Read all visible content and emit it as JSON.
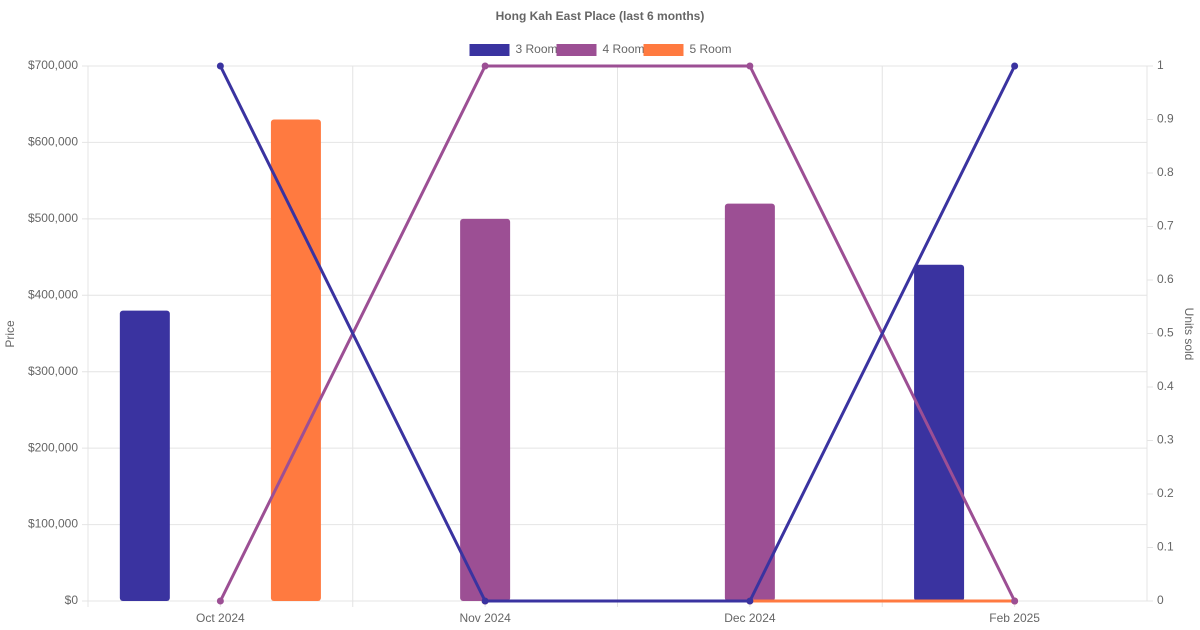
{
  "chart_data": {
    "type": "bar",
    "title": "Hong Kah East Place (last 6 months)",
    "categories": [
      "Oct 2024",
      "Nov 2024",
      "Dec 2024",
      "Feb 2025"
    ],
    "ylabel": "Price",
    "y2label": "Units sold",
    "ylim": [
      0,
      700000
    ],
    "yticks": [
      {
        "value": 0,
        "label": "$0"
      },
      {
        "value": 100000,
        "label": "$100,000"
      },
      {
        "value": 200000,
        "label": "$200,000"
      },
      {
        "value": 300000,
        "label": "$300,000"
      },
      {
        "value": 400000,
        "label": "$400,000"
      },
      {
        "value": 500000,
        "label": "$500,000"
      },
      {
        "value": 600000,
        "label": "$600,000"
      },
      {
        "value": 700000,
        "label": "$700,000"
      }
    ],
    "y2lim": [
      0,
      1
    ],
    "y2ticks": [
      0,
      0.1,
      0.2,
      0.3,
      0.4,
      0.5,
      0.6,
      0.7,
      0.8,
      0.9,
      1
    ],
    "grid": true,
    "legend": "top",
    "series": [
      {
        "name": "3 Room",
        "color": "#3a33a0",
        "values": [
          380000,
          null,
          null,
          440000
        ],
        "units": [
          1,
          0,
          0,
          1
        ]
      },
      {
        "name": "4 Room",
        "color": "#9c4f94",
        "values": [
          null,
          500000,
          520000,
          null
        ],
        "units": [
          0,
          1,
          1,
          0
        ]
      },
      {
        "name": "5 Room",
        "color": "#ff7a40",
        "values": [
          630000,
          null,
          null,
          null
        ],
        "units": [
          null,
          0,
          0,
          0
        ]
      }
    ]
  }
}
